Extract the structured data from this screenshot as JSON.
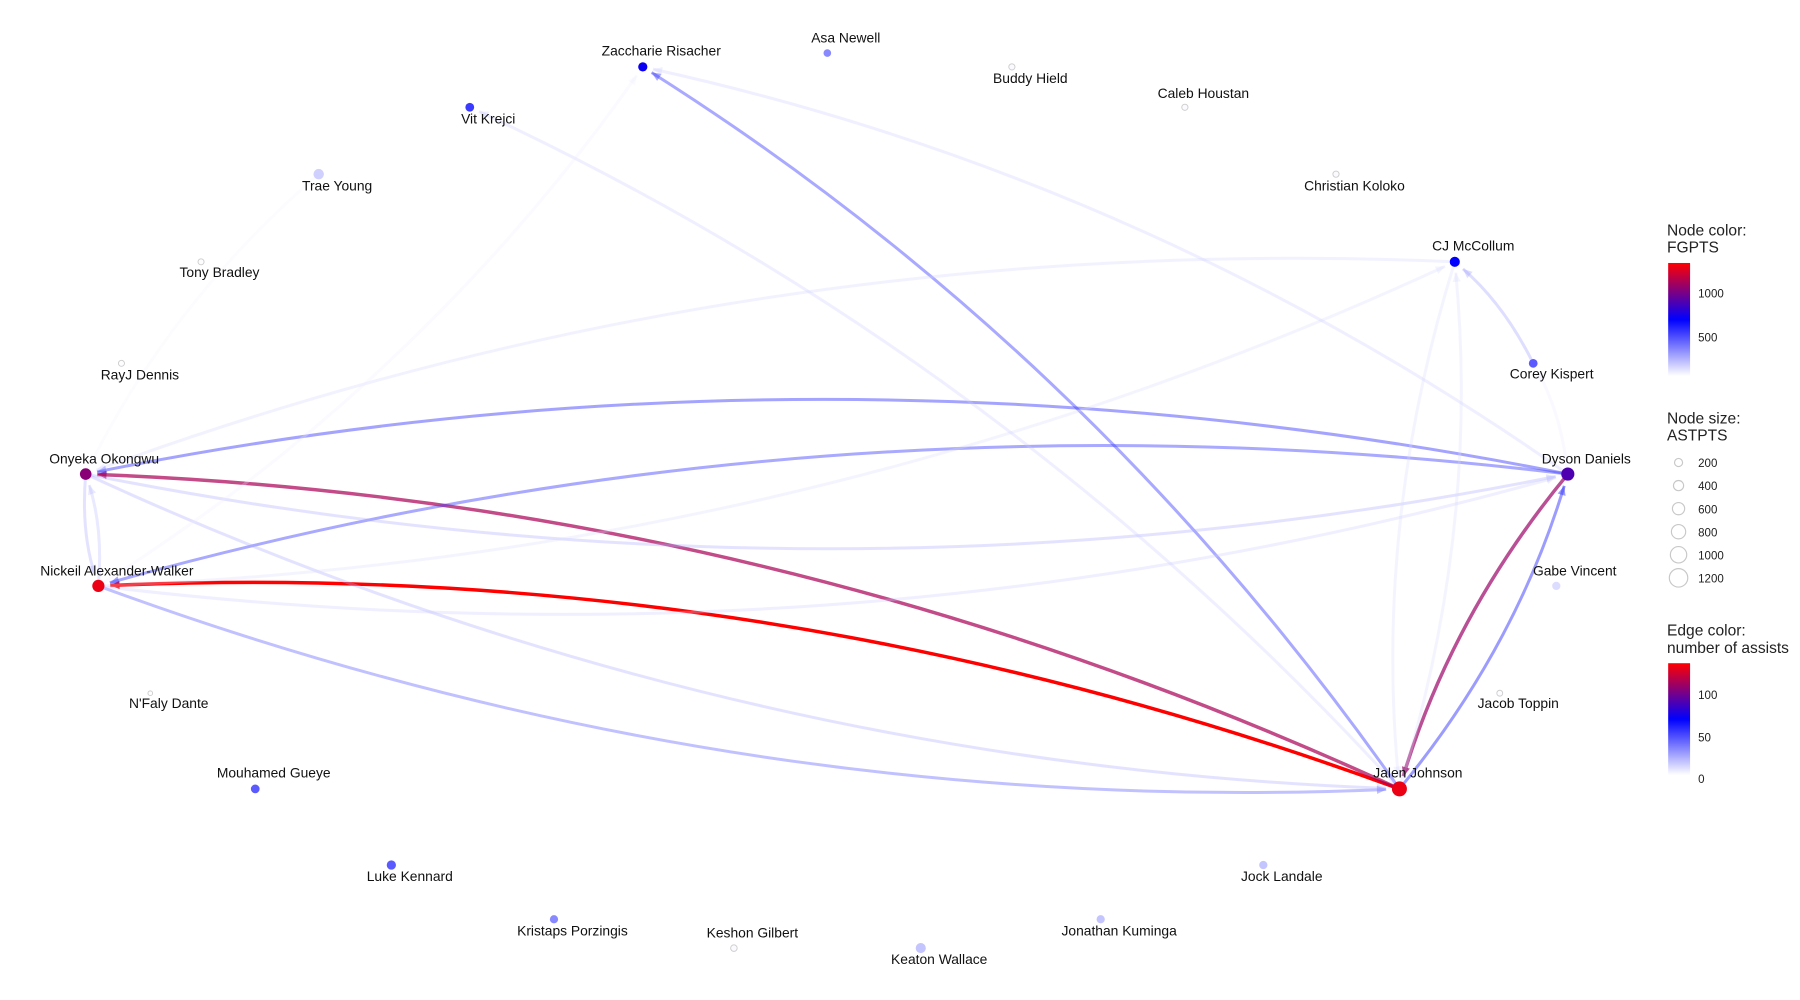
{
  "nodes": [
    {
      "name": "Zaccharie Risacher",
      "FGPTS": 680,
      "ASTPTS": 350
    },
    {
      "name": "Asa Newell",
      "FGPTS": 300,
      "ASTPTS": 200
    },
    {
      "name": "Buddy Hield",
      "FGPTS": 20,
      "ASTPTS": 100
    },
    {
      "name": "Caleb Houstan",
      "FGPTS": 20,
      "ASTPTS": 100
    },
    {
      "name": "Christian Koloko",
      "FGPTS": 20,
      "ASTPTS": 100
    },
    {
      "name": "CJ McCollum",
      "FGPTS": 650,
      "ASTPTS": 450
    },
    {
      "name": "Corey Kispert",
      "FGPTS": 420,
      "ASTPTS": 300
    },
    {
      "name": "Dyson Daniels",
      "FGPTS": 850,
      "ASTPTS": 900
    },
    {
      "name": "Gabe Vincent",
      "FGPTS": 150,
      "ASTPTS": 250
    },
    {
      "name": "Jacob Toppin",
      "FGPTS": 10,
      "ASTPTS": 80
    },
    {
      "name": "Jalen Johnson",
      "FGPTS": 1250,
      "ASTPTS": 1250
    },
    {
      "name": "Jock Landale",
      "FGPTS": 250,
      "ASTPTS": 250
    },
    {
      "name": "Jonathan Kuminga",
      "FGPTS": 250,
      "ASTPTS": 250
    },
    {
      "name": "Keaton Wallace",
      "FGPTS": 250,
      "ASTPTS": 450
    },
    {
      "name": "Keshon Gilbert",
      "FGPTS": 20,
      "ASTPTS": 120
    },
    {
      "name": "Kristaps Porzingis",
      "FGPTS": 300,
      "ASTPTS": 250
    },
    {
      "name": "Luke Kennard",
      "FGPTS": 420,
      "ASTPTS": 350
    },
    {
      "name": "Mouhamed Gueye",
      "FGPTS": 420,
      "ASTPTS": 300
    },
    {
      "name": "N'Faly Dante",
      "FGPTS": 5,
      "ASTPTS": 30
    },
    {
      "name": "Nickeil Alexander-Walker",
      "FGPTS": 1250,
      "ASTPTS": 750
    },
    {
      "name": "Onyeka Okongwu",
      "FGPTS": 1000,
      "ASTPTS": 650
    },
    {
      "name": "RayJ Dennis",
      "FGPTS": 10,
      "ASTPTS": 90
    },
    {
      "name": "Tony Bradley",
      "FGPTS": 10,
      "ASTPTS": 90
    },
    {
      "name": "Trae Young",
      "FGPTS": 200,
      "ASTPTS": 500
    },
    {
      "name": "Vit Krejci",
      "FGPTS": 500,
      "ASTPTS": 300
    }
  ],
  "edges": [
    {
      "from": "Jalen Johnson",
      "to": "Nickeil Alexander-Walker",
      "assists": 135
    },
    {
      "from": "Jalen Johnson",
      "to": "Onyeka Okongwu",
      "assists": 112
    },
    {
      "from": "Dyson Daniels",
      "to": "Jalen Johnson",
      "assists": 108
    },
    {
      "from": "Jalen Johnson",
      "to": "Dyson Daniels",
      "assists": 55
    },
    {
      "from": "Jalen Johnson",
      "to": "Zaccharie Risacher",
      "assists": 50
    },
    {
      "from": "Dyson Daniels",
      "to": "Onyeka Okongwu",
      "assists": 52
    },
    {
      "from": "Dyson Daniels",
      "to": "Nickeil Alexander-Walker",
      "assists": 50
    },
    {
      "from": "Nickeil Alexander-Walker",
      "to": "Jalen Johnson",
      "assists": 40
    },
    {
      "from": "Onyeka Okongwu",
      "to": "Jalen Johnson",
      "assists": 22
    },
    {
      "from": "Onyeka Okongwu",
      "to": "Dyson Daniels",
      "assists": 22
    },
    {
      "from": "Nickeil Alexander-Walker",
      "to": "Dyson Daniels",
      "assists": 14
    },
    {
      "from": "CJ McCollum",
      "to": "Onyeka Okongwu",
      "assists": 12
    },
    {
      "from": "Nickeil Alexander-Walker",
      "to": "CJ McCollum",
      "assists": 10
    },
    {
      "from": "Dyson Daniels",
      "to": "Zaccharie Risacher",
      "assists": 14
    },
    {
      "from": "Jalen Johnson",
      "to": "Vit Krejci",
      "assists": 14
    },
    {
      "from": "Nickeil Alexander-Walker",
      "to": "Zaccharie Risacher",
      "assists": 5
    },
    {
      "from": "Corey Kispert",
      "to": "CJ McCollum",
      "assists": 25
    },
    {
      "from": "Jalen Johnson",
      "to": "CJ McCollum",
      "assists": 10
    },
    {
      "from": "CJ McCollum",
      "to": "Jalen Johnson",
      "assists": 10
    },
    {
      "from": "Onyeka Okongwu",
      "to": "Nickeil Alexander-Walker",
      "assists": 22
    },
    {
      "from": "Nickeil Alexander-Walker",
      "to": "Onyeka Okongwu",
      "assists": 18
    },
    {
      "from": "Trae Young",
      "to": "Onyeka Okongwu",
      "assists": 3
    },
    {
      "from": "Dyson Daniels",
      "to": "Corey Kispert",
      "assists": 6
    }
  ],
  "legend": {
    "node_color": {
      "title1": "Node color:",
      "title2": "FGPTS",
      "ticks": [
        {
          "v": 1000,
          "label": "1000"
        },
        {
          "v": 500,
          "label": "500"
        }
      ],
      "range": [
        0,
        1300
      ],
      "colors": [
        "#ffffff",
        "#0000ff",
        "#ff0000"
      ]
    },
    "node_size": {
      "title1": "Node size:",
      "title2": "ASTPTS",
      "items": [
        "200",
        "400",
        "600",
        "800",
        "1000",
        "1200"
      ]
    },
    "edge_color": {
      "title1": "Edge color:",
      "title2": "number of assists",
      "ticks": [
        {
          "v": 100,
          "label": "100"
        },
        {
          "v": 50,
          "label": "50"
        },
        {
          "v": 0,
          "label": "0"
        }
      ],
      "range": [
        0,
        135
      ],
      "colors": [
        "#ffffff",
        "#0000ff",
        "#ff0000"
      ]
    }
  }
}
